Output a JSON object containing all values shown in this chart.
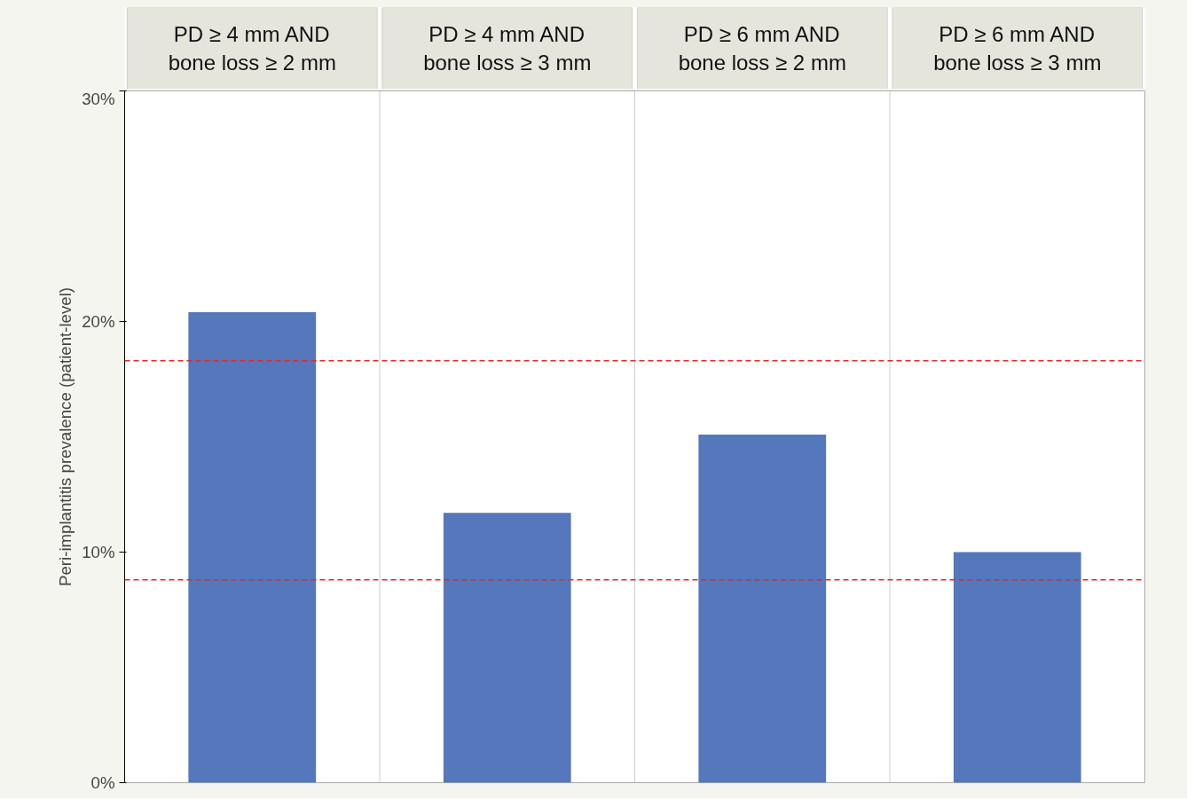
{
  "chart_data": {
    "type": "bar",
    "ylabel": "Peri-implantitis prevalence (patient-level)",
    "categories": [
      "PD ≥ 4 mm AND\nbone loss ≥ 2 mm",
      "PD ≥ 4 mm AND\nbone loss ≥ 3 mm",
      "PD ≥ 6 mm AND\nbone loss ≥ 2 mm",
      "PD ≥ 6 mm AND\nbone loss ≥ 3 mm"
    ],
    "values": [
      20.4,
      11.7,
      15.1,
      10.0
    ],
    "color": "#5577bb",
    "ylim": [
      0,
      30
    ],
    "yticks": [
      {
        "value": 0,
        "label": "0%"
      },
      {
        "value": 10,
        "label": "10%"
      },
      {
        "value": 20,
        "label": "20%"
      },
      {
        "value": 30,
        "label": "30%"
      }
    ],
    "ref_lines": [
      {
        "axis": "y",
        "value": 18.3,
        "label": null,
        "color": "#e8262a",
        "line_style": "dashed"
      },
      {
        "axis": "y",
        "value": 8.8,
        "label": null,
        "color": "#e8262a",
        "line_style": "dashed"
      }
    ],
    "grid": false
  }
}
